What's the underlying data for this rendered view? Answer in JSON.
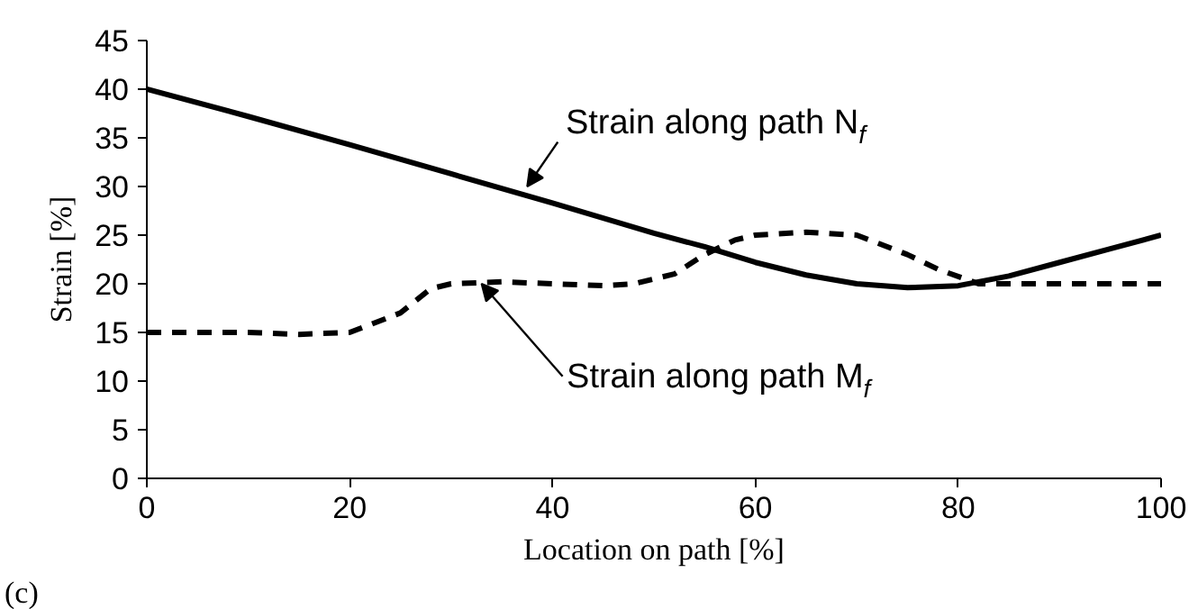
{
  "chart_data": {
    "type": "line",
    "xlabel": "Location on path [%]",
    "ylabel": "Strain [%]",
    "xlim": [
      0,
      100
    ],
    "xticks": [
      0,
      20,
      40,
      60,
      80,
      100
    ],
    "ylim": [
      0,
      45
    ],
    "yticks": [
      0,
      5,
      10,
      15,
      20,
      25,
      30,
      35,
      40,
      45
    ],
    "series": [
      {
        "color": "#000000",
        "line_style": "solid",
        "x": [
          0,
          10,
          20,
          30,
          40,
          50,
          55,
          60,
          65,
          70,
          75,
          80,
          85,
          90,
          95,
          100
        ],
        "values": [
          40,
          37.2,
          34.3,
          31.3,
          28.3,
          25.2,
          23.8,
          22.2,
          20.9,
          20,
          19.6,
          19.8,
          20.8,
          22.2,
          23.6,
          25
        ]
      },
      {
        "color": "#000000",
        "line_style": "dashed",
        "x": [
          0,
          10,
          15,
          20,
          25,
          28,
          30,
          35,
          40,
          45,
          48,
          52,
          55,
          58,
          60,
          65,
          70,
          75,
          78,
          82,
          85,
          90,
          100
        ],
        "values": [
          15,
          15,
          14.8,
          15,
          17,
          19.5,
          20,
          20.2,
          20,
          19.8,
          20,
          21,
          23,
          24.5,
          25,
          25.3,
          25,
          23,
          21.5,
          20,
          20,
          20,
          20
        ]
      }
    ],
    "annotations": [
      {
        "text": "Strain along path N$_{f}$",
        "x": 37.5,
        "y": 30
      },
      {
        "text": "Strain along path M$_{f}$",
        "x": 33,
        "y": 20
      },
      "(c)"
    ]
  }
}
